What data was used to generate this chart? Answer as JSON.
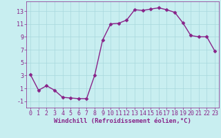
{
  "x": [
    0,
    1,
    2,
    3,
    4,
    5,
    6,
    7,
    8,
    9,
    10,
    11,
    12,
    13,
    14,
    15,
    16,
    17,
    18,
    19,
    20,
    21,
    22,
    23
  ],
  "y": [
    3.1,
    0.7,
    1.4,
    0.7,
    -0.4,
    -0.5,
    -0.6,
    -0.6,
    3.0,
    8.5,
    11.0,
    11.1,
    11.6,
    13.2,
    13.1,
    13.3,
    13.5,
    13.2,
    12.8,
    11.2,
    9.2,
    9.0,
    9.0,
    6.8
  ],
  "line_color": "#882288",
  "marker": "D",
  "marker_size": 2.5,
  "bg_color": "#C8EEF0",
  "grid_color": "#A8D8DC",
  "xlabel": "Windchill (Refroidissement éolien,°C)",
  "xlim": [
    -0.5,
    23.5
  ],
  "ylim": [
    -2.0,
    14.5
  ],
  "yticks": [
    -1,
    1,
    3,
    5,
    7,
    9,
    11,
    13
  ],
  "xticks": [
    0,
    1,
    2,
    3,
    4,
    5,
    6,
    7,
    8,
    9,
    10,
    11,
    12,
    13,
    14,
    15,
    16,
    17,
    18,
    19,
    20,
    21,
    22,
    23
  ],
  "tick_color": "#882288",
  "label_fontsize": 6.5,
  "tick_fontsize": 6.0,
  "linewidth": 1.0
}
